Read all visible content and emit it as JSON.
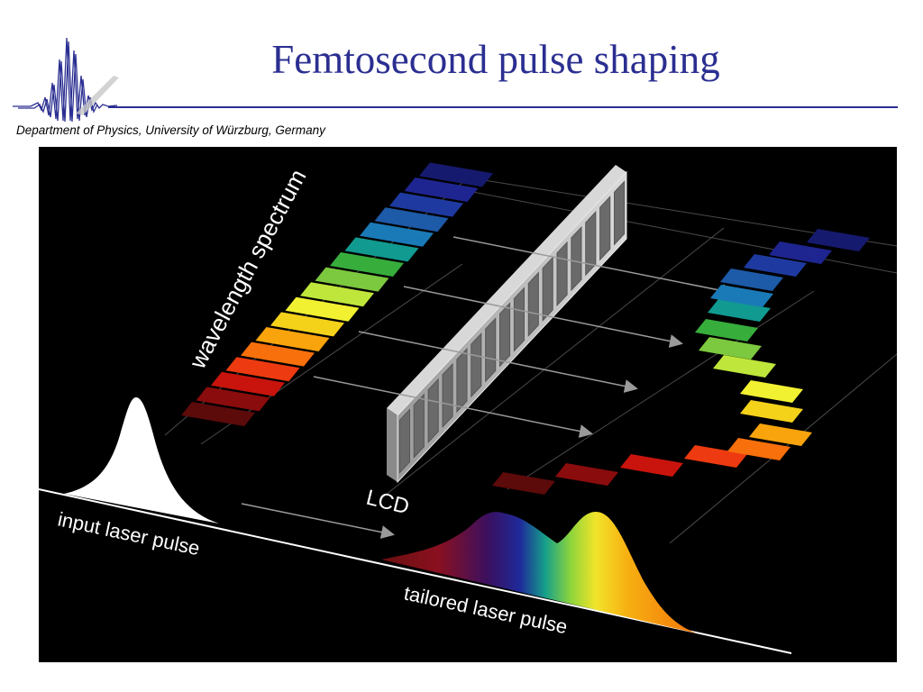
{
  "header": {
    "title": "Femtosecond pulse shaping",
    "subtitle": "Department of Physics, University of Würzburg, Germany",
    "title_color": "#2b2f91",
    "logo_icon": "pulse-waveform-logo-icon"
  },
  "diagram": {
    "background_color": "#000000",
    "labels": {
      "spectrum": "wavelength spectrum",
      "lcd": "LCD",
      "input": "input laser pulse",
      "output": "tailored laser pulse"
    },
    "spectrum_colors": [
      "#5c0a0a",
      "#8a0c0c",
      "#c8140c",
      "#ee3a10",
      "#f7700c",
      "#f9a40c",
      "#f5d21a",
      "#f1f131",
      "#bfe63a",
      "#7cc83f",
      "#37ad3c",
      "#119a8f",
      "#1a7ab7",
      "#1d5aa8",
      "#1e3aa0",
      "#1e2590",
      "#161a6e"
    ],
    "icons": {
      "input_pulse": "gaussian-pulse-icon",
      "lcd": "lcd-mask-icon",
      "arrows": "arrow-right-icon"
    }
  }
}
